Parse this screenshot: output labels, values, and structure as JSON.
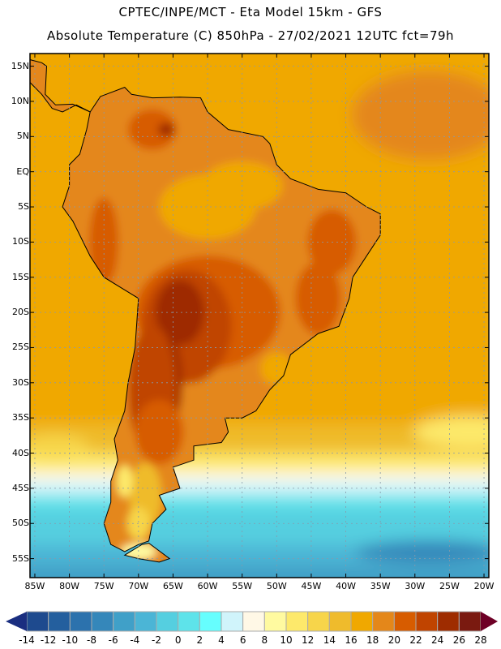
{
  "header": {
    "line1": "CPTEC/INPE/MCT -  Eta Model 15km - GFS",
    "line2": "Absolute Temperature (C) 850hPa - 27/02/2021 12UTC fct=79h"
  },
  "map": {
    "lat_labels": [
      "15N",
      "10N",
      "5N",
      "EQ",
      "5S",
      "10S",
      "15S",
      "20S",
      "25S",
      "30S",
      "35S",
      "40S",
      "45S",
      "50S",
      "55S"
    ],
    "lat_values": [
      15,
      10,
      5,
      0,
      -5,
      -10,
      -15,
      -20,
      -25,
      -30,
      -35,
      -40,
      -45,
      -50,
      -55
    ],
    "lon_labels": [
      "85W",
      "80W",
      "75W",
      "70W",
      "65W",
      "60W",
      "55W",
      "50W",
      "45W",
      "40W",
      "35W",
      "30W",
      "25W",
      "20W"
    ],
    "lon_values": [
      -85,
      -80,
      -75,
      -70,
      -65,
      -60,
      -55,
      -50,
      -45,
      -40,
      -35,
      -30,
      -25,
      -20
    ],
    "extent": {
      "lon": [
        -85.7,
        -19.3
      ],
      "lat": [
        -57.7,
        16.8
      ]
    }
  },
  "colorbar": {
    "labels": [
      "-14",
      "-12",
      "-10",
      "-8",
      "-6",
      "-4",
      "-2",
      "0",
      "2",
      "4",
      "6",
      "8",
      "10",
      "12",
      "14",
      "16",
      "18",
      "20",
      "22",
      "24",
      "26",
      "28"
    ],
    "colors": [
      "#1e4a8e",
      "#245f9e",
      "#2c72ad",
      "#3587ba",
      "#40a0c8",
      "#4bb5d6",
      "#55cfe0",
      "#5ee3ea",
      "#66fefe",
      "#d0f4fb",
      "#fff8e6",
      "#fffaa0",
      "#fde96b",
      "#f7d54a",
      "#efbb2c",
      "#f0a800",
      "#e4871a",
      "#d75c00",
      "#c04400",
      "#9e2c00",
      "#7a1a10"
    ],
    "under_color": "#1a2e80",
    "over_color": "#6e0026"
  }
}
